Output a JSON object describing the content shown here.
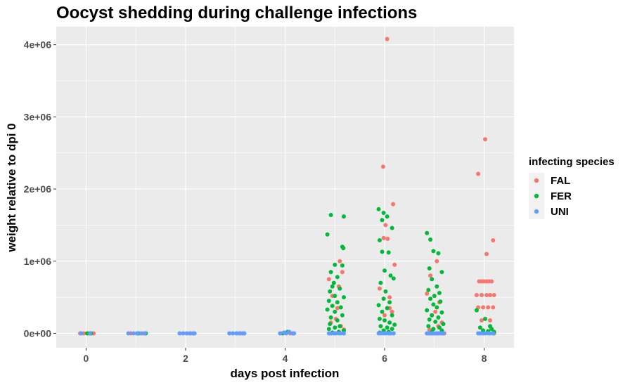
{
  "chart_data": {
    "type": "scatter",
    "title": "Oocyst shedding during challenge infections",
    "xlabel": "days post infection",
    "ylabel": "weight relative to dpi 0",
    "xlim": [
      -0.6,
      8.6
    ],
    "ylim": [
      -200000,
      4250000
    ],
    "x_ticks": [
      0,
      2,
      4,
      6,
      8
    ],
    "x_tick_labels": [
      "0",
      "2",
      "4",
      "6",
      "8"
    ],
    "y_ticks": [
      0,
      1000000,
      2000000,
      3000000,
      4000000
    ],
    "y_tick_labels": [
      "0e+00",
      "1e+06",
      "2e+06",
      "3e+06",
      "4e+06"
    ],
    "grid": true,
    "jitter": "horizontal",
    "legend": {
      "title": "infecting species",
      "position": "right",
      "entries": [
        "FAL",
        "FER",
        "UNI"
      ]
    },
    "series": [
      {
        "name": "FAL",
        "color": "#F8766D",
        "points": [
          [
            -0.12,
            0
          ],
          [
            -0.05,
            0
          ],
          [
            0.05,
            0
          ],
          [
            0.15,
            0
          ],
          [
            0.9,
            0
          ],
          [
            1.15,
            0
          ],
          [
            2.1,
            0
          ],
          [
            3.1,
            0
          ],
          [
            4.1,
            0
          ],
          [
            4.88,
            750000
          ],
          [
            5.08,
            650000
          ],
          [
            5.15,
            850000
          ],
          [
            5.1,
            1000000
          ],
          [
            4.95,
            520000
          ],
          [
            5.05,
            350000
          ],
          [
            4.92,
            150000
          ],
          [
            5.12,
            100000
          ],
          [
            5.18,
            50000
          ],
          [
            5.02,
            200000
          ],
          [
            6.05,
            4080000
          ],
          [
            5.97,
            2310000
          ],
          [
            6.17,
            1790000
          ],
          [
            6.02,
            1500000
          ],
          [
            5.98,
            1320000
          ],
          [
            6.06,
            1310000
          ],
          [
            6.2,
            950000
          ],
          [
            6.1,
            500000
          ],
          [
            5.9,
            620000
          ],
          [
            6.1,
            350000
          ],
          [
            6.15,
            300000
          ],
          [
            6.0,
            250000
          ],
          [
            6.92,
            800000
          ],
          [
            7.05,
            1000000
          ],
          [
            6.85,
            550000
          ],
          [
            7.1,
            430000
          ],
          [
            7.02,
            300000
          ],
          [
            6.95,
            250000
          ],
          [
            7.15,
            150000
          ],
          [
            7.08,
            100000
          ],
          [
            6.9,
            50000
          ],
          [
            7.2,
            0
          ],
          [
            7.88,
            2210000
          ],
          [
            8.02,
            2690000
          ],
          [
            8.05,
            1100000
          ],
          [
            8.18,
            1290000
          ],
          [
            7.9,
            720000
          ],
          [
            7.95,
            720000
          ],
          [
            8.0,
            720000
          ],
          [
            8.05,
            720000
          ],
          [
            8.1,
            720000
          ],
          [
            8.15,
            720000
          ],
          [
            7.85,
            530000
          ],
          [
            7.95,
            530000
          ],
          [
            8.05,
            530000
          ],
          [
            8.12,
            530000
          ],
          [
            8.2,
            530000
          ],
          [
            7.88,
            360000
          ],
          [
            7.98,
            360000
          ],
          [
            8.08,
            360000
          ],
          [
            8.18,
            360000
          ],
          [
            7.95,
            180000
          ],
          [
            8.12,
            180000
          ],
          [
            8.2,
            0
          ]
        ]
      },
      {
        "name": "FER",
        "color": "#00BA38",
        "points": [
          [
            0.02,
            0
          ],
          [
            0.1,
            0
          ],
          [
            1.05,
            0
          ],
          [
            1.2,
            0
          ],
          [
            4.05,
            20000
          ],
          [
            3.95,
            0
          ],
          [
            4.92,
            1640000
          ],
          [
            5.18,
            1620000
          ],
          [
            4.85,
            1370000
          ],
          [
            5.15,
            1200000
          ],
          [
            5.17,
            1180000
          ],
          [
            5.0,
            950000
          ],
          [
            5.15,
            940000
          ],
          [
            4.92,
            850000
          ],
          [
            5.05,
            780000
          ],
          [
            4.98,
            700000
          ],
          [
            4.95,
            650000
          ],
          [
            5.1,
            620000
          ],
          [
            4.9,
            580000
          ],
          [
            5.0,
            520000
          ],
          [
            5.18,
            500000
          ],
          [
            4.88,
            450000
          ],
          [
            5.05,
            430000
          ],
          [
            4.95,
            380000
          ],
          [
            5.12,
            360000
          ],
          [
            4.85,
            330000
          ],
          [
            5.0,
            300000
          ],
          [
            5.15,
            250000
          ],
          [
            4.92,
            220000
          ],
          [
            5.05,
            180000
          ],
          [
            4.9,
            130000
          ],
          [
            5.1,
            100000
          ],
          [
            5.0,
            80000
          ],
          [
            4.88,
            60000
          ],
          [
            5.18,
            40000
          ],
          [
            5.08,
            20000
          ],
          [
            4.95,
            10000
          ],
          [
            5.88,
            1720000
          ],
          [
            5.98,
            1670000
          ],
          [
            5.95,
            1570000
          ],
          [
            6.05,
            1620000
          ],
          [
            6.15,
            1460000
          ],
          [
            5.9,
            1290000
          ],
          [
            6.08,
            1120000
          ],
          [
            5.95,
            1130000
          ],
          [
            6.0,
            870000
          ],
          [
            6.12,
            800000
          ],
          [
            6.18,
            760000
          ],
          [
            5.92,
            700000
          ],
          [
            6.02,
            580000
          ],
          [
            5.98,
            480000
          ],
          [
            6.1,
            430000
          ],
          [
            5.88,
            390000
          ],
          [
            6.05,
            350000
          ],
          [
            5.95,
            300000
          ],
          [
            6.15,
            250000
          ],
          [
            5.9,
            200000
          ],
          [
            6.0,
            180000
          ],
          [
            6.1,
            150000
          ],
          [
            6.2,
            120000
          ],
          [
            5.92,
            100000
          ],
          [
            6.05,
            80000
          ],
          [
            6.15,
            60000
          ],
          [
            5.98,
            40000
          ],
          [
            6.08,
            20000
          ],
          [
            5.9,
            10000
          ],
          [
            6.85,
            1390000
          ],
          [
            6.92,
            1300000
          ],
          [
            6.98,
            1140000
          ],
          [
            7.08,
            1110000
          ],
          [
            6.9,
            900000
          ],
          [
            7.15,
            850000
          ],
          [
            6.95,
            750000
          ],
          [
            7.05,
            650000
          ],
          [
            6.88,
            600000
          ],
          [
            7.1,
            560000
          ],
          [
            7.0,
            520000
          ],
          [
            6.92,
            480000
          ],
          [
            7.12,
            440000
          ],
          [
            6.98,
            400000
          ],
          [
            7.05,
            360000
          ],
          [
            6.85,
            320000
          ],
          [
            7.15,
            290000
          ],
          [
            6.95,
            250000
          ],
          [
            7.08,
            220000
          ],
          [
            6.9,
            190000
          ],
          [
            7.02,
            160000
          ],
          [
            7.18,
            130000
          ],
          [
            6.88,
            100000
          ],
          [
            7.1,
            80000
          ],
          [
            6.98,
            60000
          ],
          [
            7.15,
            40000
          ],
          [
            6.95,
            20000
          ],
          [
            7.85,
            320000
          ],
          [
            8.02,
            200000
          ],
          [
            8.12,
            100000
          ],
          [
            7.92,
            80000
          ],
          [
            8.15,
            60000
          ],
          [
            7.98,
            40000
          ],
          [
            8.08,
            30000
          ],
          [
            8.2,
            20000
          ]
        ]
      },
      {
        "name": "UNI",
        "color": "#619CFF",
        "points": [
          [
            -0.1,
            0
          ],
          [
            0.08,
            0
          ],
          [
            0.85,
            0
          ],
          [
            0.95,
            0
          ],
          [
            1.02,
            0
          ],
          [
            1.1,
            0
          ],
          [
            1.18,
            0
          ],
          [
            1.88,
            0
          ],
          [
            1.95,
            0
          ],
          [
            2.02,
            0
          ],
          [
            2.08,
            0
          ],
          [
            2.15,
            0
          ],
          [
            2.18,
            0
          ],
          [
            2.88,
            0
          ],
          [
            2.95,
            0
          ],
          [
            3.02,
            0
          ],
          [
            3.08,
            0
          ],
          [
            3.15,
            0
          ],
          [
            3.18,
            0
          ],
          [
            3.9,
            0
          ],
          [
            3.98,
            10000
          ],
          [
            4.02,
            0
          ],
          [
            4.08,
            20000
          ],
          [
            4.15,
            0
          ],
          [
            4.18,
            0
          ],
          [
            4.88,
            0
          ],
          [
            4.92,
            0
          ],
          [
            4.98,
            0
          ],
          [
            5.02,
            0
          ],
          [
            5.08,
            0
          ],
          [
            5.12,
            0
          ],
          [
            5.18,
            0
          ],
          [
            5.88,
            0
          ],
          [
            5.92,
            0
          ],
          [
            5.98,
            0
          ],
          [
            6.02,
            0
          ],
          [
            6.08,
            0
          ],
          [
            6.12,
            0
          ],
          [
            6.18,
            0
          ],
          [
            6.85,
            0
          ],
          [
            6.88,
            0
          ],
          [
            6.92,
            0
          ],
          [
            6.95,
            0
          ],
          [
            6.98,
            0
          ],
          [
            7.02,
            0
          ],
          [
            7.05,
            0
          ],
          [
            7.08,
            0
          ],
          [
            7.12,
            0
          ],
          [
            7.15,
            0
          ],
          [
            7.18,
            0
          ],
          [
            7.88,
            0
          ],
          [
            7.92,
            0
          ],
          [
            7.98,
            0
          ],
          [
            8.02,
            0
          ],
          [
            8.08,
            0
          ],
          [
            8.12,
            0
          ],
          [
            8.18,
            0
          ]
        ]
      }
    ]
  }
}
